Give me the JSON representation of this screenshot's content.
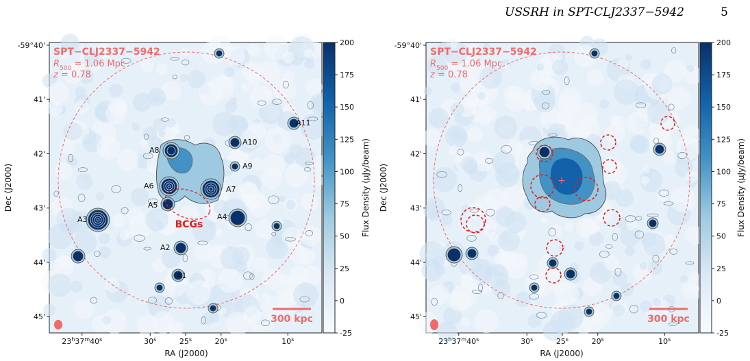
{
  "header": {
    "running_title": "USSRH in SPT-CLJ2337−5942",
    "page_number": "5"
  },
  "figure": {
    "dec_ticks": [
      "-59°40'",
      "41'",
      "42'",
      "43'",
      "44'",
      "45'"
    ],
    "dec_values_arcmin": [
      40,
      41,
      42,
      43,
      44,
      45
    ],
    "ra_ticks": [
      "23h37m40s",
      "30s",
      "25s",
      "20s",
      "10s"
    ],
    "ra_tick_fracs": [
      0.12,
      0.37,
      0.5,
      0.63,
      0.875
    ],
    "xlabel": "RA (J2000)",
    "ylabel": "Dec (J2000)",
    "colorbar": {
      "label": "Flux Density (μJy/beam)",
      "ticks": [
        200,
        175,
        150,
        125,
        100,
        75,
        50,
        25,
        0,
        -25
      ],
      "range": [
        -25,
        200
      ],
      "color_low": "#f2f7fc",
      "color_high": "#08306b"
    },
    "overlay": {
      "cluster_name": "SPT−CLJ2337−5942",
      "r500_text": "R500 = 1.06 Mpc",
      "r500_symbol": "R",
      "r500_sub": "500",
      "r500_value": " = 1.06 Mpc",
      "z_symbol": "z",
      "z_value": " = 0.78"
    },
    "scalebar_label": "300 kpc",
    "accent_color": "#f06a6a",
    "bcg_color": "#e02020"
  },
  "left_panel": {
    "source_labels": [
      "A11",
      "A10",
      "A9",
      "A8",
      "A7",
      "A6",
      "A5",
      "A4",
      "A3",
      "A2",
      "A1"
    ],
    "bcg_label": "BCGs"
  }
}
